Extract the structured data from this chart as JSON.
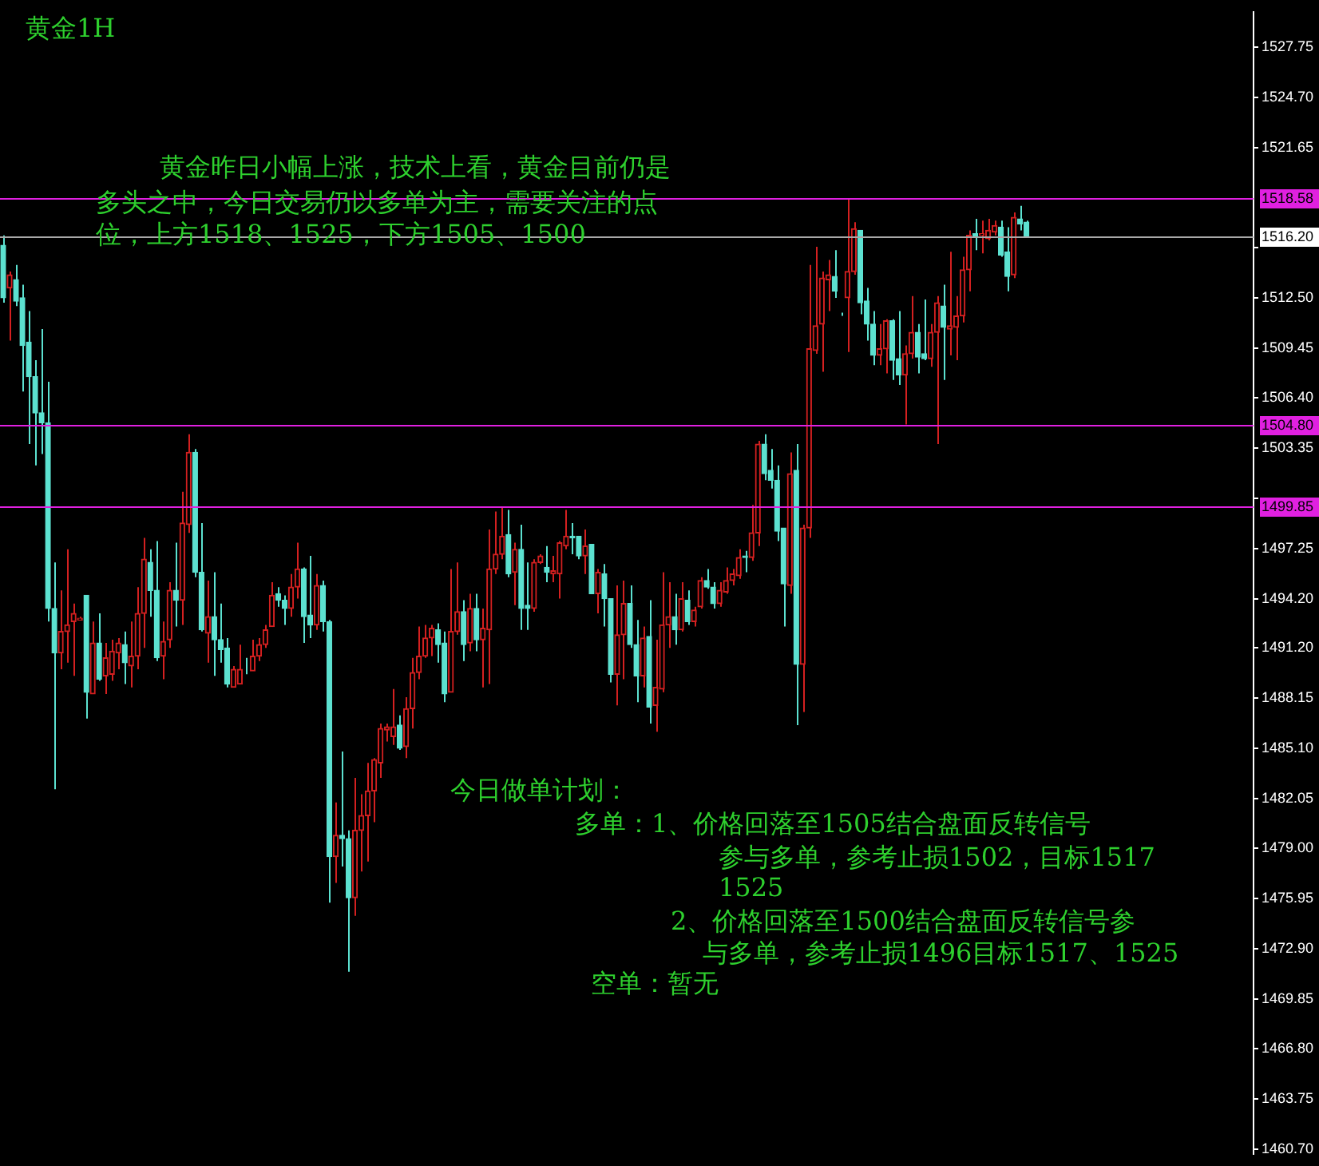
{
  "chart_data": {
    "type": "candlestick",
    "title": "黄金1H",
    "annotations": [
      "黄金昨日小幅上涨，技术上看，黄金目前仍是",
      "多头之中，今日交易仍以多单为主，需要关注的点",
      "位，上方1518、1525，下方1505、1500",
      "今日做单计划：",
      "多单：1、价格回落至1505结合盘面反转信号",
      "参与多单，参考止损1502，目标1517",
      "1525",
      "2、价格回落至1500结合盘面反转信号参",
      "与多单，参考止损1496目标1517、1525",
      "空单：暂无"
    ],
    "categories": [
      null,
      null,
      null,
      null,
      null,
      null,
      null,
      null,
      null,
      null,
      null,
      null,
      null,
      null,
      null,
      null,
      null,
      null,
      null,
      null,
      null,
      null,
      null,
      null,
      null,
      null,
      null,
      null,
      null,
      null,
      null,
      null,
      null,
      null,
      null,
      null,
      null,
      null,
      null,
      null,
      null,
      null,
      null,
      null,
      null,
      null,
      null,
      null,
      null,
      null,
      null,
      null,
      null,
      null,
      null,
      null,
      null,
      null,
      null,
      null,
      null,
      null,
      null,
      null,
      null,
      null,
      null,
      null,
      null,
      null,
      null,
      null,
      null,
      null,
      null,
      null,
      null,
      null,
      null,
      null,
      null,
      null,
      null,
      null,
      null,
      null,
      null,
      null,
      null,
      null,
      null,
      null,
      null,
      null,
      null,
      null,
      null,
      null,
      null,
      null,
      null,
      null,
      null,
      null,
      null,
      null,
      null,
      null,
      null,
      null,
      null,
      null,
      null,
      null,
      null,
      null,
      null,
      null,
      null,
      null,
      null,
      null,
      null,
      null,
      null,
      null,
      null,
      null,
      null,
      null,
      null,
      null,
      null,
      null,
      null,
      null,
      null,
      null,
      null,
      null,
      null,
      null,
      null,
      null,
      null,
      null,
      null,
      null,
      null,
      null,
      null,
      null,
      null,
      null,
      null,
      null,
      null,
      null,
      null,
      null,
      null,
      null,
      null,
      null,
      null,
      null,
      null,
      null,
      null,
      null,
      null,
      null,
      null,
      null,
      null,
      null,
      null,
      null,
      null,
      null,
      null,
      null,
      null,
      null,
      null,
      null,
      null,
      null,
      null,
      null,
      null,
      null,
      null,
      null,
      null,
      null
    ],
    "ohlc": [
      [
        1515.7,
        1516.3,
        1512.2,
        1512.5
      ],
      [
        1513.1,
        1514.1,
        1509.9,
        1513.9
      ],
      [
        1513.6,
        1514.5,
        1512.0,
        1512.3
      ],
      [
        1512.5,
        1513.3,
        1506.8,
        1509.6
      ],
      [
        1509.8,
        1511.7,
        1503.6,
        1507.7
      ],
      [
        1507.7,
        1508.7,
        1502.3,
        1505.5
      ],
      [
        1505.5,
        1510.6,
        1503.0,
        1504.9
      ],
      [
        1504.9,
        1507.4,
        1492.8,
        1493.6
      ],
      [
        1493.6,
        1496.4,
        1482.6,
        1490.9
      ],
      [
        1490.9,
        1494.7,
        1489.9,
        1492.2
      ],
      [
        1492.2,
        1497.2,
        1490.3,
        1492.6
      ],
      [
        1492.8,
        1493.9,
        1489.5,
        1493.3
      ],
      [
        1492.9,
        1493.1,
        1492.9,
        1493.0
      ],
      [
        1494.4,
        1494.4,
        1486.9,
        1488.5
      ],
      [
        1488.4,
        1492.8,
        1488.4,
        1491.5
      ],
      [
        1491.5,
        1493.3,
        1489.2,
        1489.3
      ],
      [
        1489.5,
        1491.5,
        1488.4,
        1490.6
      ],
      [
        1489.6,
        1491.7,
        1489.2,
        1491.0
      ],
      [
        1490.9,
        1491.8,
        1489.9,
        1491.5
      ],
      [
        1491.4,
        1492.2,
        1489.0,
        1490.3
      ],
      [
        1490.1,
        1492.8,
        1488.8,
        1490.7
      ],
      [
        1490.7,
        1494.9,
        1489.9,
        1493.3
      ],
      [
        1493.3,
        1497.9,
        1491.2,
        1496.6
      ],
      [
        1496.4,
        1497.2,
        1493.1,
        1494.7
      ],
      [
        1494.7,
        1497.7,
        1490.4,
        1490.6
      ],
      [
        1490.7,
        1492.8,
        1489.3,
        1491.6
      ],
      [
        1491.7,
        1495.2,
        1491.2,
        1494.7
      ],
      [
        1494.7,
        1497.6,
        1492.5,
        1494.1
      ],
      [
        1494.1,
        1500.7,
        1492.6,
        1498.8
      ],
      [
        1498.7,
        1504.2,
        1498.2,
        1503.1
      ],
      [
        1503.1,
        1503.3,
        1495.5,
        1495.8
      ],
      [
        1495.8,
        1498.8,
        1492.2,
        1492.3
      ],
      [
        1492.1,
        1495.3,
        1490.3,
        1493.1
      ],
      [
        1493.1,
        1495.8,
        1489.5,
        1491.7
      ],
      [
        1491.7,
        1493.9,
        1490.3,
        1491.1
      ],
      [
        1491.2,
        1491.8,
        1488.8,
        1489.0
      ],
      [
        1488.8,
        1490.1,
        1488.8,
        1489.9
      ],
      [
        1489.0,
        1491.4,
        1489.0,
        1489.9
      ],
      [
        1489.8,
        1490.6,
        1489.6,
        1489.8
      ],
      [
        1489.8,
        1491.7,
        1489.8,
        1490.7
      ],
      [
        1490.7,
        1491.8,
        1490.4,
        1491.4
      ],
      [
        1491.4,
        1492.6,
        1491.2,
        1492.3
      ],
      [
        1492.5,
        1495.2,
        1492.5,
        1494.4
      ],
      [
        1494.5,
        1494.9,
        1493.7,
        1494.1
      ],
      [
        1494.1,
        1494.4,
        1492.6,
        1493.6
      ],
      [
        1493.6,
        1495.7,
        1493.1,
        1494.9
      ],
      [
        1494.9,
        1497.6,
        1494.2,
        1496.0
      ],
      [
        1496.0,
        1496.1,
        1491.5,
        1493.1
      ],
      [
        1493.2,
        1496.8,
        1491.8,
        1492.6
      ],
      [
        1492.6,
        1495.7,
        1492.3,
        1495.0
      ],
      [
        1495.0,
        1495.3,
        1492.2,
        1492.8
      ],
      [
        1492.8,
        1492.9,
        1475.7,
        1478.5
      ],
      [
        1478.5,
        1481.8,
        1476.9,
        1479.8
      ],
      [
        1479.8,
        1484.9,
        1477.9,
        1479.6
      ],
      [
        1479.6,
        1480.1,
        1471.5,
        1476.0
      ],
      [
        1476.0,
        1483.3,
        1474.9,
        1480.1
      ],
      [
        1480.1,
        1482.3,
        1477.6,
        1481.0
      ],
      [
        1481.0,
        1484.2,
        1478.2,
        1482.5
      ],
      [
        1482.5,
        1484.5,
        1480.6,
        1484.4
      ],
      [
        1484.2,
        1486.6,
        1483.3,
        1486.3
      ],
      [
        1486.2,
        1486.6,
        1485.5,
        1486.4
      ],
      [
        1485.8,
        1488.7,
        1485.3,
        1486.4
      ],
      [
        1486.5,
        1487.1,
        1485.0,
        1485.1
      ],
      [
        1485.2,
        1488.2,
        1484.5,
        1487.5
      ],
      [
        1487.5,
        1490.6,
        1486.3,
        1489.7
      ],
      [
        1489.7,
        1492.5,
        1489.3,
        1490.7
      ],
      [
        1490.7,
        1492.6,
        1490.6,
        1491.8
      ],
      [
        1491.8,
        1492.6,
        1490.7,
        1492.4
      ],
      [
        1492.3,
        1492.7,
        1490.3,
        1491.4
      ],
      [
        1491.5,
        1492.2,
        1487.9,
        1488.4
      ],
      [
        1488.5,
        1496.0,
        1488.5,
        1492.2
      ],
      [
        1492.2,
        1496.4,
        1492.0,
        1493.4
      ],
      [
        1493.4,
        1494.1,
        1490.4,
        1491.4
      ],
      [
        1491.5,
        1494.5,
        1491.0,
        1493.6
      ],
      [
        1493.6,
        1494.5,
        1491.0,
        1491.7
      ],
      [
        1491.7,
        1493.6,
        1488.8,
        1492.4
      ],
      [
        1492.3,
        1498.4,
        1489.0,
        1496.0
      ],
      [
        1496.0,
        1499.5,
        1495.7,
        1496.9
      ],
      [
        1496.9,
        1499.8,
        1496.6,
        1498.0
      ],
      [
        1498.1,
        1499.6,
        1495.5,
        1495.7
      ],
      [
        1495.8,
        1497.6,
        1493.8,
        1497.2
      ],
      [
        1497.2,
        1498.7,
        1492.3,
        1493.6
      ],
      [
        1493.8,
        1496.4,
        1492.3,
        1493.6
      ],
      [
        1493.6,
        1496.6,
        1493.4,
        1496.4
      ],
      [
        1496.4,
        1496.9,
        1496.3,
        1496.8
      ],
      [
        1496.1,
        1497.4,
        1495.2,
        1495.8
      ],
      [
        1495.7,
        1496.8,
        1495.2,
        1495.9
      ],
      [
        1495.7,
        1497.7,
        1494.2,
        1497.6
      ],
      [
        1497.4,
        1499.6,
        1497.2,
        1498.0
      ],
      [
        1498.0,
        1498.8,
        1496.9,
        1497.9
      ],
      [
        1498.0,
        1498.0,
        1496.6,
        1496.8
      ],
      [
        1496.8,
        1498.4,
        1495.7,
        1497.4
      ],
      [
        1497.5,
        1497.5,
        1494.5,
        1494.5
      ],
      [
        1494.5,
        1496.0,
        1493.3,
        1495.8
      ],
      [
        1495.7,
        1496.3,
        1492.5,
        1494.2
      ],
      [
        1494.2,
        1494.2,
        1489.1,
        1489.6
      ],
      [
        1489.6,
        1495.0,
        1487.7,
        1492.0
      ],
      [
        1492.0,
        1495.3,
        1489.3,
        1493.9
      ],
      [
        1493.9,
        1495.0,
        1491.2,
        1491.4
      ],
      [
        1491.4,
        1492.9,
        1487.9,
        1489.5
      ],
      [
        1489.5,
        1492.5,
        1488.8,
        1491.8
      ],
      [
        1491.9,
        1494.1,
        1486.6,
        1487.6
      ],
      [
        1487.7,
        1491.7,
        1486.1,
        1488.8
      ],
      [
        1488.7,
        1495.8,
        1488.5,
        1492.6
      ],
      [
        1492.6,
        1495.2,
        1491.2,
        1493.1
      ],
      [
        1493.1,
        1494.5,
        1491.4,
        1492.3
      ],
      [
        1492.3,
        1495.2,
        1492.2,
        1494.2
      ],
      [
        1494.1,
        1494.7,
        1492.6,
        1492.8
      ],
      [
        1492.8,
        1493.7,
        1492.5,
        1493.5
      ],
      [
        1493.7,
        1495.5,
        1493.6,
        1495.3
      ],
      [
        1495.3,
        1496.0,
        1494.8,
        1494.9
      ],
      [
        1494.9,
        1495.2,
        1493.6,
        1493.9
      ],
      [
        1493.9,
        1495.2,
        1493.7,
        1494.7
      ],
      [
        1494.6,
        1496.1,
        1494.5,
        1495.3
      ],
      [
        1495.3,
        1496.0,
        1495.0,
        1495.7
      ],
      [
        1495.6,
        1497.2,
        1495.4,
        1496.7
      ],
      [
        1496.8,
        1497.1,
        1495.8,
        1496.7
      ],
      [
        1496.7,
        1499.9,
        1496.5,
        1498.2
      ],
      [
        1498.2,
        1503.8,
        1497.4,
        1503.6
      ],
      [
        1503.6,
        1504.2,
        1501.4,
        1501.8
      ],
      [
        1502.0,
        1503.3,
        1500.9,
        1501.4
      ],
      [
        1501.4,
        1502.3,
        1497.7,
        1498.3
      ],
      [
        1498.5,
        1498.5,
        1492.5,
        1495.1
      ],
      [
        1495.0,
        1503.1,
        1494.5,
        1501.8
      ],
      [
        1502.0,
        1503.6,
        1486.5,
        1490.2
      ],
      [
        1490.2,
        1498.7,
        1487.3,
        1498.5
      ],
      [
        1498.5,
        1514.5,
        1497.9,
        1509.4
      ],
      [
        1509.3,
        1515.6,
        1509.1,
        1510.8
      ],
      [
        1510.9,
        1514.1,
        1508.0,
        1513.7
      ],
      [
        1513.6,
        1514.8,
        1511.7,
        1513.9
      ],
      [
        1513.8,
        1515.4,
        1512.5,
        1512.9
      ],
      [
        1511.5,
        1511.6,
        1511.4,
        1511.5
      ],
      [
        1512.5,
        1518.5,
        1509.2,
        1514.1
      ],
      [
        1514.1,
        1517.1,
        1513.9,
        1516.7
      ],
      [
        1516.6,
        1516.6,
        1511.5,
        1512.2
      ],
      [
        1512.3,
        1513.1,
        1509.9,
        1510.9
      ],
      [
        1510.9,
        1511.7,
        1508.4,
        1509.0
      ],
      [
        1509.0,
        1510.9,
        1508.4,
        1509.4
      ],
      [
        1509.4,
        1511.2,
        1507.9,
        1511.1
      ],
      [
        1511.1,
        1511.2,
        1507.5,
        1508.7
      ],
      [
        1508.8,
        1511.7,
        1507.2,
        1507.8
      ],
      [
        1507.8,
        1509.6,
        1504.8,
        1509.1
      ],
      [
        1509.1,
        1512.6,
        1508.8,
        1510.4
      ],
      [
        1510.4,
        1510.9,
        1507.9,
        1508.9
      ],
      [
        1509.1,
        1512.4,
        1508.7,
        1508.8
      ],
      [
        1508.8,
        1510.9,
        1508.3,
        1510.4
      ],
      [
        1510.4,
        1512.6,
        1503.6,
        1512.2
      ],
      [
        1512.0,
        1513.3,
        1507.5,
        1510.7
      ],
      [
        1510.6,
        1515.3,
        1509.0,
        1510.8
      ],
      [
        1510.7,
        1512.6,
        1508.7,
        1511.4
      ],
      [
        1511.4,
        1515.0,
        1511.0,
        1514.2
      ],
      [
        1514.2,
        1516.6,
        1512.9,
        1516.3
      ],
      [
        1516.4,
        1517.3,
        1515.4,
        1516.2
      ],
      [
        1516.3,
        1517.2,
        1515.2,
        1516.4
      ],
      [
        1516.1,
        1517.3,
        1516.0,
        1516.6
      ],
      [
        1516.5,
        1517.2,
        1516.3,
        1516.9
      ],
      [
        1516.8,
        1517.2,
        1515.0,
        1515.1
      ],
      [
        1515.3,
        1516.8,
        1512.9,
        1513.8
      ],
      [
        1513.9,
        1517.7,
        1513.7,
        1517.4
      ],
      [
        1517.3,
        1518.1,
        1516.6,
        1517.0
      ],
      [
        1517.1,
        1517.2,
        1516.2,
        1516.2
      ],
      null,
      null,
      null,
      null,
      null,
      null,
      null,
      null,
      null,
      null,
      null,
      null,
      null,
      null,
      null,
      null,
      null,
      null,
      null,
      null,
      null,
      null,
      null,
      null,
      null,
      null,
      null,
      null,
      null,
      null,
      null,
      null,
      null,
      null,
      null
    ],
    "colors": [
      "#5ce1d0",
      "#d42020",
      "#5ce1d0",
      "#5ce1d0",
      "#5ce1d0",
      "#5ce1d0",
      "#5ce1d0",
      "#5ce1d0",
      "#5ce1d0",
      "#d42020",
      "#d42020",
      "#d42020",
      "#d42020",
      "#5ce1d0",
      "#d42020",
      "#5ce1d0",
      "#d42020",
      "#d42020",
      "#d42020",
      "#5ce1d0",
      "#d42020",
      "#d42020",
      "#d42020",
      "#5ce1d0",
      "#5ce1d0",
      "#d42020",
      "#d42020",
      "#5ce1d0",
      "#d42020",
      "#d42020",
      "#5ce1d0",
      "#5ce1d0",
      "#d42020",
      "#5ce1d0",
      "#5ce1d0",
      "#5ce1d0",
      "#d42020",
      "#d42020",
      "#5ce1d0",
      "#d42020",
      "#d42020",
      "#d42020",
      "#d42020",
      "#5ce1d0",
      "#5ce1d0",
      "#d42020",
      "#d42020",
      "#5ce1d0",
      "#5ce1d0",
      "#d42020",
      "#5ce1d0",
      "#5ce1d0",
      "#d42020",
      "#5ce1d0",
      "#5ce1d0",
      "#d42020",
      "#d42020",
      "#d42020",
      "#d42020",
      "#d42020",
      "#d42020",
      "#d42020",
      "#5ce1d0",
      "#d42020",
      "#d42020",
      "#d42020",
      "#d42020",
      "#d42020",
      "#5ce1d0",
      "#5ce1d0",
      "#d42020",
      "#d42020",
      "#5ce1d0",
      "#d42020",
      "#5ce1d0",
      "#d42020",
      "#d42020",
      "#d42020",
      "#d42020",
      "#5ce1d0",
      "#d42020",
      "#5ce1d0",
      "#5ce1d0",
      "#d42020",
      "#d42020",
      "#5ce1d0",
      "#d42020",
      "#d42020",
      "#d42020",
      "#5ce1d0",
      "#5ce1d0",
      "#d42020",
      "#5ce1d0",
      "#d42020",
      "#5ce1d0",
      "#5ce1d0",
      "#d42020",
      "#d42020",
      "#5ce1d0",
      "#5ce1d0",
      "#d42020",
      "#5ce1d0",
      "#d42020",
      "#d42020",
      "#d42020",
      "#5ce1d0",
      "#d42020",
      "#5ce1d0",
      "#d42020",
      "#d42020",
      "#5ce1d0",
      "#5ce1d0",
      "#d42020",
      "#d42020",
      "#d42020",
      "#d42020",
      "#5ce1d0",
      "#d42020",
      "#d42020",
      "#5ce1d0",
      "#5ce1d0",
      "#5ce1d0",
      "#5ce1d0",
      "#d42020",
      "#5ce1d0",
      "#d42020",
      "#d42020",
      "#d42020",
      "#d42020",
      "#d42020",
      "#5ce1d0",
      "#5ce1d0",
      "#d42020",
      "#d42020",
      "#5ce1d0",
      "#5ce1d0",
      "#5ce1d0",
      "#d42020",
      "#d42020",
      "#5ce1d0",
      "#5ce1d0",
      "#d42020",
      "#d42020",
      "#5ce1d0",
      "#5ce1d0",
      "#d42020",
      "#d42020",
      "#5ce1d0",
      "#d42020",
      "#d42020",
      "#d42020",
      "#d42020",
      "#5ce1d0",
      "#d42020",
      "#d42020",
      "#d42020",
      "#5ce1d0",
      "#5ce1d0",
      "#d42020",
      "#5ce1d0",
      "#5ce1d0",
      null,
      null,
      null,
      null,
      null,
      null,
      null,
      null,
      null,
      null,
      null,
      null,
      null,
      null,
      null,
      null,
      null,
      null,
      null,
      null,
      null,
      null,
      null,
      null,
      null,
      null,
      null,
      null,
      null,
      null,
      null,
      null,
      null,
      null,
      null
    ],
    "ylim": [
      1460.4,
      1529.9
    ],
    "yticks": [
      {
        "value": 1460.7,
        "label": "1460.70"
      },
      1463.75,
      {
        "value": 1466.8,
        "label": "1466.80"
      },
      1469.85,
      {
        "value": 1472.9,
        "label": "1472.90"
      },
      1475.95,
      {
        "value": 1479,
        "label": "1479.00"
      },
      1482.05,
      {
        "value": 1485.1,
        "label": "1485.10"
      },
      1488.15,
      {
        "value": 1491.2,
        "label": "1491.20"
      },
      {
        "value": 1494.2,
        "label": "1494.20"
      },
      1497.25,
      {
        "value": 1500.3,
        "label": null
      },
      1503.35,
      {
        "value": 1506.4,
        "label": "1506.40"
      },
      1509.45,
      {
        "value": 1512.5,
        "label": "1512.50"
      },
      {
        "value": 1515.55,
        "label": null
      },
      1521.65,
      {
        "value": 1524.7,
        "label": "1524.70"
      },
      1527.75
    ],
    "ref_lines": [
      {
        "axis": "y",
        "value": 1518.58,
        "label": "1518.58",
        "color": "#e020e0"
      },
      {
        "axis": "y",
        "value": 1516.2,
        "label": "1516.20",
        "color": "#a8a8a8"
      },
      {
        "axis": "y",
        "value": 1504.8,
        "label": "1504.80",
        "color": "#e020e0"
      },
      {
        "axis": "y",
        "value": 1499.85,
        "label": "1499.85",
        "color": "#e020e0"
      }
    ],
    "tick_labels": "y"
  }
}
